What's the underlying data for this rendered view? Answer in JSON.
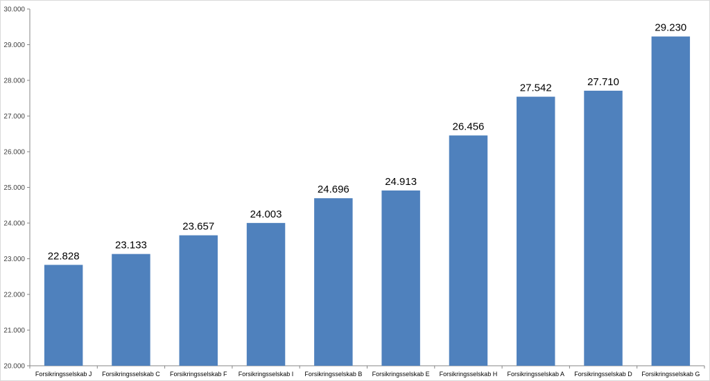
{
  "chart_data": {
    "type": "bar",
    "categories": [
      "Forsikringsselskab J",
      "Forsikringsselskab C",
      "Forsikringsselskab F",
      "Forsikringsselskab I",
      "Forsikringsselskab B",
      "Forsikringsselskab E",
      "Forsikringsselskab H",
      "Forsikringsselskab A",
      "Forsikringsselskab D",
      "Forsikringsselskab G"
    ],
    "values": [
      22828,
      23133,
      23657,
      24003,
      24696,
      24913,
      26456,
      27542,
      27710,
      29230
    ],
    "data_labels": [
      "22.828",
      "23.133",
      "23.657",
      "24.003",
      "24.696",
      "24.913",
      "26.456",
      "27.542",
      "27.710",
      "29.230"
    ],
    "ylim": [
      20000,
      30000
    ],
    "yticks": [
      20000,
      21000,
      22000,
      23000,
      24000,
      25000,
      26000,
      27000,
      28000,
      29000,
      30000
    ],
    "ytick_labels": [
      "20.000",
      "21.000",
      "22.000",
      "23.000",
      "24.000",
      "25.000",
      "26.000",
      "27.000",
      "28.000",
      "29.000",
      "30.000"
    ],
    "bar_color": "#4f81bd",
    "grid": false,
    "legend": "none"
  }
}
